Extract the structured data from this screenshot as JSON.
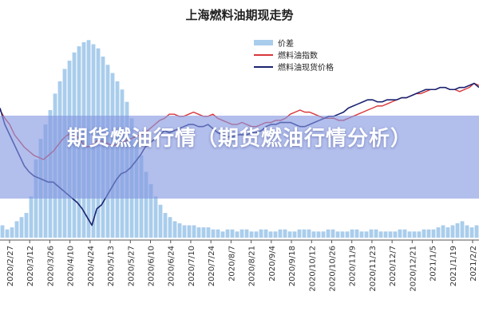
{
  "colors": {
    "spread": "#a9cdec",
    "index": "#d9373b",
    "spot": "#1b2370",
    "overlay_band": "#8296e1",
    "overlay_text": "#ffffff"
  },
  "overlay": {
    "title": "期货燃油行情（期货燃油行情分析）"
  },
  "chart_data": {
    "type": "line",
    "title": "上海燃料油期现走势",
    "xlabel": "",
    "ylabel": "",
    "grid": false,
    "legend_position": "top-center",
    "x_tick_labels": [
      "2020/2/27",
      "2020/3/12",
      "2020/3/26",
      "2020/4/10",
      "2020/4/24",
      "2020/5/13",
      "2020/5/27",
      "2020/6/10",
      "2020/6/24",
      "2020/7/10",
      "2020/7/24",
      "2020/8/7",
      "2020/8/21",
      "2020/9/4",
      "2020/9/18",
      "2020/10/12",
      "2020/10/26",
      "2020/11/9",
      "2020/11/23",
      "2020/12/7",
      "2020/12/21",
      "2021/1/5",
      "2021/1/19",
      "2021/2/2"
    ],
    "ylim": [
      0,
      100
    ],
    "series": [
      {
        "name": "价差",
        "type": "bar",
        "values": [
          6,
          4,
          5,
          8,
          10,
          12,
          20,
          38,
          48,
          55,
          62,
          70,
          76,
          82,
          86,
          90,
          93,
          95,
          96,
          94,
          92,
          88,
          84,
          80,
          76,
          72,
          66,
          58,
          48,
          40,
          32,
          26,
          20,
          16,
          12,
          10,
          8,
          7,
          6,
          6,
          6,
          5,
          5,
          5,
          4,
          4,
          3,
          4,
          4,
          3,
          4,
          4,
          3,
          3,
          4,
          4,
          3,
          3,
          4,
          4,
          3,
          3,
          4,
          4,
          4,
          3,
          3,
          3,
          4,
          4,
          3,
          3,
          3,
          4,
          4,
          3,
          3,
          4,
          4,
          3,
          3,
          3,
          3,
          4,
          4,
          3,
          3,
          3,
          4,
          4,
          4,
          5,
          6,
          5,
          6,
          7,
          8,
          6,
          5,
          6
        ]
      },
      {
        "name": "燃料油指数",
        "type": "line",
        "values": [
          62,
          58,
          55,
          50,
          47,
          44,
          42,
          40,
          39,
          38,
          40,
          42,
          45,
          48,
          50,
          50,
          49,
          46,
          44,
          45,
          47,
          47,
          46,
          45,
          45,
          46,
          47,
          48,
          49,
          50,
          51,
          53,
          55,
          57,
          58,
          60,
          60,
          59,
          59,
          60,
          61,
          60,
          59,
          59,
          60,
          58,
          57,
          56,
          55,
          55,
          56,
          55,
          54,
          54,
          55,
          56,
          56,
          57,
          57,
          58,
          60,
          61,
          62,
          61,
          61,
          60,
          59,
          58,
          58,
          58,
          57,
          57,
          58,
          59,
          60,
          61,
          62,
          63,
          64,
          64,
          65,
          66,
          67,
          68,
          68,
          69,
          70,
          70,
          71,
          72,
          72,
          73,
          73,
          72,
          72,
          71,
          72,
          73,
          75,
          74
        ]
      },
      {
        "name": "燃料油现货价格",
        "type": "line",
        "values": [
          63,
          55,
          50,
          45,
          40,
          35,
          32,
          30,
          29,
          28,
          27,
          27,
          25,
          23,
          21,
          19,
          17,
          14,
          10,
          6,
          14,
          16,
          20,
          24,
          28,
          31,
          32,
          34,
          37,
          40,
          44,
          46,
          48,
          50,
          52,
          51,
          52,
          53,
          54,
          55,
          55,
          54,
          54,
          55,
          53,
          51,
          50,
          49,
          49,
          50,
          50,
          50,
          51,
          51,
          52,
          54,
          55,
          55,
          56,
          56,
          56,
          55,
          54,
          54,
          55,
          56,
          57,
          58,
          59,
          59,
          60,
          61,
          63,
          64,
          65,
          66,
          67,
          67,
          66,
          66,
          67,
          67,
          67,
          68,
          68,
          69,
          70,
          71,
          72,
          72,
          72,
          73,
          73,
          72,
          72,
          73,
          73,
          74,
          75,
          73
        ]
      }
    ]
  }
}
